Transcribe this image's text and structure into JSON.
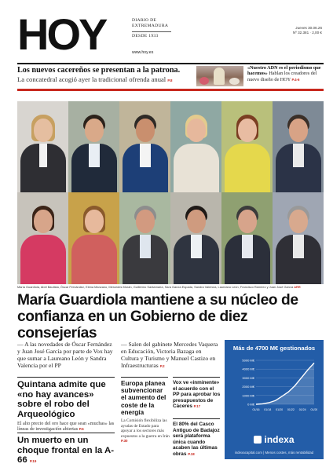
{
  "masthead": {
    "logo": "HOY",
    "subtitle_1": "DIARIO DE",
    "subtitle_2": "EXTREMADURA",
    "since": "DESDE 1933",
    "url": "www.hoy.es",
    "date": "Jueves 30.06.26",
    "issue": "Nº 32.381 · 2,00 €"
  },
  "teasers": {
    "left_title": "Los nuevos cacereños se presentan a la patrona.",
    "left_sub": "La concatedral acogió ayer la tradicional ofrenda anual",
    "left_page": "P.8",
    "right_bold": "«Nuestro ADN es el periodismo que hacemos»",
    "right_text": "Hablan los creadores del nuevo diseño de HOY",
    "right_page": "P.4-6"
  },
  "photo_caption": "María Guardiola, Abel Bautista, Óscar Fernández, Elena Manzano, Mercedes Morán, Guillermo Santamaría, Sara García Espada, Sandra Valencia, Laureano León, Francisco Ramírez y Juan José García",
  "photo_caption_page": "ARR",
  "main": {
    "headline": "María Guardiola mantiene a su núcleo de confianza en un Gobierno de diez consejerías",
    "bullet_1": "A las novedades de Óscar Fernández y Juan José García por parte de Vox hay que sumar a Laureano León y Sandra Valencia por el PP",
    "bullet_2": "Salen del gabinete Mercedes Vaquera en Educación, Victoria Bazaga en Cultura y Turismo y Manuel Castizo en Infraestructuras",
    "bullet_2_page": "P.2"
  },
  "stories": {
    "s1_title": "Quintana admite que «no hay avances» sobre el robo del Arqueológico",
    "s1_text": "El alto precio del oro hace que sean «muchas» las líneas de investigación abiertas",
    "s1_page": "P.6",
    "s2_title": "Un muerto en un choque frontal en la A-66",
    "s2_page": "P.19",
    "s3_title": "Europa planea subvencionar el aumento del coste de la energía",
    "s3_text": "La Comisión flexibiliza las ayudas de Estado para apoyar a los sectores más expuestos a la guerra en Irán",
    "s3_page": "P.30",
    "s4_title": "Vox ve «inminente» el acuerdo con el PP para aprobar los presupuestos de Cáceres",
    "s4_page": "P.17",
    "s5_title": "El 80% del Casco Antiguo de Badajoz será plataforma única cuando acaben las últimas obras",
    "s5_page": "P.18"
  },
  "ad": {
    "headline": "Más de 4700 M€ gestionados",
    "brand": "indexa",
    "footer": "indexacapital.com | Menos costes, más rentabilidad",
    "y_labels": [
      "5000 M€",
      "4000 M€",
      "3000 M€",
      "2000 M€",
      "1000 M€",
      "0 M€"
    ],
    "x_labels": [
      "01/16",
      "01/18",
      "01/20",
      "01/22",
      "01/24",
      "01/26"
    ],
    "series_values": [
      0,
      50,
      180,
      420,
      900,
      1400,
      2100,
      3000,
      3900,
      4700
    ],
    "colors": {
      "background": "#235da8",
      "line": "#ffffff",
      "accent": "#c8281e"
    }
  }
}
